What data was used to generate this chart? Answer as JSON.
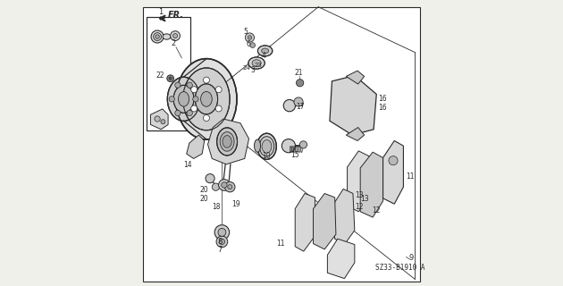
{
  "bg_color": "#f0f0eb",
  "line_color": "#2a2a2a",
  "diagram_code": "SZ33-B1910 A",
  "fr_label": "FR."
}
